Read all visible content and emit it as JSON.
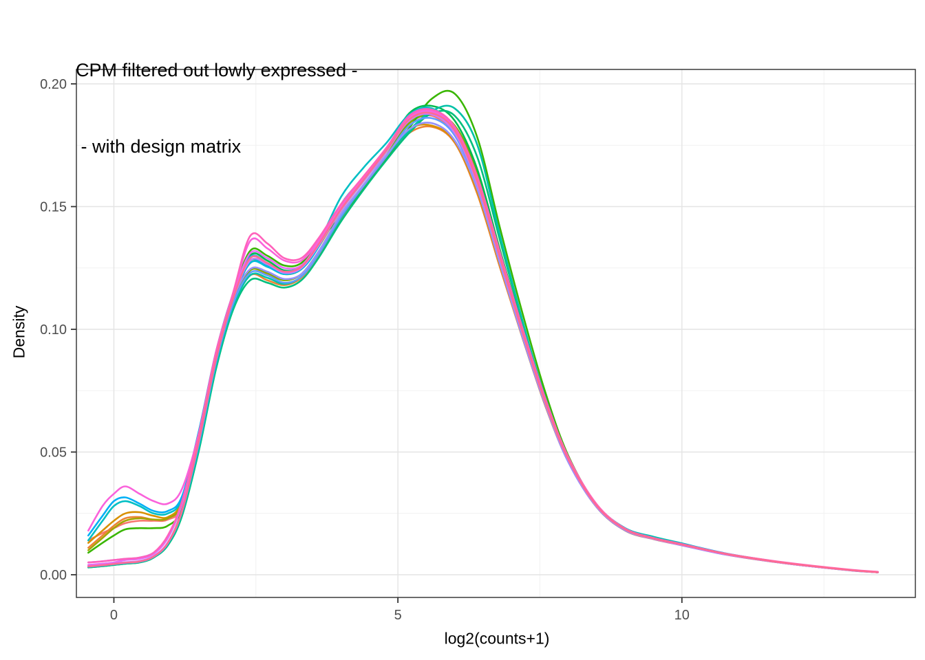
{
  "title": {
    "line1": "CPM filtered out lowly expressed -",
    "line2": " - with design matrix"
  },
  "colors": {
    "background": "#ffffff",
    "panel_border": "#3a3a3a",
    "grid_major": "#e4e4e4",
    "grid_minor": "#f1f1f1",
    "tick_mark": "#333333",
    "tick_label": "#4d4d4d",
    "text": "#000000"
  },
  "chart_data": {
    "type": "line",
    "title": "CPM filtered out lowly expressed - - with design matrix",
    "xlabel": "log2(counts+1)",
    "ylabel": "Density",
    "legend": "none",
    "grid": "major+minor",
    "x_domain": [
      -0.66,
      14.11
    ],
    "y_domain": [
      0,
      0.206
    ],
    "x_ticks": [
      0,
      5,
      10
    ],
    "x_tick_labels": [
      "0",
      "5",
      "10"
    ],
    "x_minor": [
      2.5,
      7.5,
      12.5
    ],
    "y_ticks": [
      0,
      0.05,
      0.1,
      0.15,
      0.2
    ],
    "y_tick_labels": [
      "0.00",
      "0.05",
      "0.10",
      "0.15",
      "0.20"
    ],
    "y_minor": [
      0.025,
      0.075,
      0.125,
      0.175
    ],
    "line_width": 2.6,
    "x": [
      -0.45,
      -0.2,
      0,
      0.2,
      0.45,
      0.7,
      0.95,
      1.2,
      1.5,
      1.8,
      2.1,
      2.4,
      2.7,
      3.0,
      3.3,
      3.6,
      4.0,
      4.4,
      4.8,
      5.2,
      5.6,
      6.0,
      6.4,
      6.8,
      7.2,
      7.6,
      8.0,
      8.5,
      9.0,
      9.5,
      10.0,
      10.75,
      11.5,
      12.25,
      13.0,
      13.45
    ],
    "series": [
      {
        "name": "curve-01",
        "color": "#F8766D",
        "y": [
          0.014,
          0.017,
          0.019,
          0.021,
          0.022,
          0.022,
          0.0225,
          0.028,
          0.056,
          0.089,
          0.113,
          0.129,
          0.127,
          0.1235,
          0.125,
          0.134,
          0.149,
          0.161,
          0.173,
          0.184,
          0.187,
          0.179,
          0.159,
          0.129,
          0.098,
          0.07,
          0.047,
          0.028,
          0.0185,
          0.0148,
          0.0122,
          0.0085,
          0.0058,
          0.0036,
          0.0018,
          0.001
        ]
      },
      {
        "name": "curve-02",
        "color": "#EB8335",
        "y": [
          0.011,
          0.016,
          0.02,
          0.023,
          0.0235,
          0.0225,
          0.023,
          0.029,
          0.054,
          0.086,
          0.11,
          0.122,
          0.12,
          0.118,
          0.121,
          0.13,
          0.145,
          0.158,
          0.17,
          0.18,
          0.1825,
          0.176,
          0.155,
          0.125,
          0.096,
          0.0685,
          0.046,
          0.0275,
          0.018,
          0.0145,
          0.012,
          0.0083,
          0.0056,
          0.0035,
          0.0017,
          0.001
        ]
      },
      {
        "name": "curve-03",
        "color": "#D89000",
        "y": [
          0.013,
          0.018,
          0.022,
          0.025,
          0.0255,
          0.024,
          0.0235,
          0.03,
          0.056,
          0.088,
          0.111,
          0.124,
          0.1225,
          0.12,
          0.1225,
          0.1315,
          0.1465,
          0.1585,
          0.1705,
          0.1815,
          0.183,
          0.1765,
          0.156,
          0.126,
          0.097,
          0.069,
          0.0465,
          0.0278,
          0.0182,
          0.0146,
          0.0121,
          0.0084,
          0.0057,
          0.0035,
          0.0018,
          0.001
        ]
      },
      {
        "name": "curve-04",
        "color": "#C09B00",
        "y": [
          0.0035,
          0.004,
          0.0045,
          0.005,
          0.0055,
          0.0075,
          0.013,
          0.026,
          0.054,
          0.087,
          0.112,
          0.127,
          0.126,
          0.1225,
          0.1245,
          0.1335,
          0.1485,
          0.1605,
          0.1725,
          0.185,
          0.188,
          0.181,
          0.16,
          0.129,
          0.098,
          0.07,
          0.047,
          0.028,
          0.0185,
          0.0148,
          0.0122,
          0.0085,
          0.0058,
          0.0036,
          0.0018,
          0.001
        ]
      },
      {
        "name": "curve-05",
        "color": "#A3A500",
        "y": [
          0.01,
          0.015,
          0.019,
          0.022,
          0.023,
          0.0225,
          0.023,
          0.029,
          0.056,
          0.089,
          0.113,
          0.128,
          0.1265,
          0.123,
          0.125,
          0.134,
          0.1485,
          0.1605,
          0.1725,
          0.186,
          0.189,
          0.182,
          0.161,
          0.13,
          0.099,
          0.0705,
          0.0472,
          0.0282,
          0.0186,
          0.0149,
          0.0122,
          0.0085,
          0.0058,
          0.0036,
          0.0018,
          0.001
        ]
      },
      {
        "name": "curve-06",
        "color": "#7CAE00",
        "y": [
          0.0035,
          0.004,
          0.0045,
          0.005,
          0.0055,
          0.0075,
          0.013,
          0.0265,
          0.0545,
          0.0875,
          0.1115,
          0.124,
          0.123,
          0.12,
          0.1225,
          0.1315,
          0.147,
          0.159,
          0.171,
          0.184,
          0.1875,
          0.183,
          0.164,
          0.132,
          0.1,
          0.071,
          0.0475,
          0.0283,
          0.0186,
          0.0149,
          0.0122,
          0.0085,
          0.0058,
          0.0036,
          0.0018,
          0.001
        ]
      },
      {
        "name": "curve-07",
        "color": "#39B600",
        "y": [
          0.009,
          0.013,
          0.016,
          0.0185,
          0.019,
          0.019,
          0.02,
          0.027,
          0.055,
          0.089,
          0.114,
          0.132,
          0.13,
          0.126,
          0.127,
          0.136,
          0.146,
          0.158,
          0.17,
          0.182,
          0.194,
          0.196,
          0.178,
          0.141,
          0.106,
          0.074,
          0.0485,
          0.0285,
          0.0187,
          0.0149,
          0.0122,
          0.0085,
          0.0058,
          0.0036,
          0.0018,
          0.001
        ]
      },
      {
        "name": "curve-08",
        "color": "#00BB4E",
        "y": [
          0.003,
          0.0035,
          0.004,
          0.0045,
          0.005,
          0.007,
          0.0125,
          0.0255,
          0.0535,
          0.0865,
          0.111,
          0.13,
          0.128,
          0.124,
          0.1255,
          0.1345,
          0.149,
          0.161,
          0.173,
          0.188,
          0.191,
          0.185,
          0.165,
          0.132,
          0.1,
          0.0712,
          0.0475,
          0.0283,
          0.0186,
          0.0149,
          0.0122,
          0.0085,
          0.0058,
          0.0036,
          0.0018,
          0.001
        ]
      },
      {
        "name": "curve-09",
        "color": "#00BF7D",
        "y": [
          0.003,
          0.0035,
          0.004,
          0.0045,
          0.005,
          0.007,
          0.012,
          0.024,
          0.051,
          0.084,
          0.108,
          0.12,
          0.119,
          0.117,
          0.12,
          0.129,
          0.144,
          0.157,
          0.169,
          0.18,
          0.188,
          0.187,
          0.17,
          0.136,
          0.102,
          0.072,
          0.0478,
          0.0284,
          0.0187,
          0.015,
          0.0123,
          0.0085,
          0.0058,
          0.0036,
          0.0018,
          0.001
        ]
      },
      {
        "name": "curve-10",
        "color": "#00C1A7",
        "y": [
          0.0032,
          0.0037,
          0.0042,
          0.0047,
          0.0052,
          0.0072,
          0.0125,
          0.025,
          0.052,
          0.085,
          0.109,
          0.122,
          0.121,
          0.1185,
          0.1215,
          0.1305,
          0.1455,
          0.1585,
          0.1705,
          0.181,
          0.189,
          0.19,
          0.175,
          0.138,
          0.103,
          0.0715,
          0.0473,
          0.0285,
          0.019,
          0.0155,
          0.0128,
          0.0087,
          0.0059,
          0.0036,
          0.0018,
          0.001
        ]
      },
      {
        "name": "curve-11",
        "color": "#00BFC4",
        "y": [
          0.014,
          0.022,
          0.028,
          0.03,
          0.028,
          0.025,
          0.025,
          0.031,
          0.058,
          0.09,
          0.114,
          0.128,
          0.126,
          0.1235,
          0.126,
          0.135,
          0.154,
          0.166,
          0.176,
          0.1875,
          0.19,
          0.181,
          0.159,
          0.128,
          0.098,
          0.07,
          0.047,
          0.0282,
          0.019,
          0.0152,
          0.0125,
          0.0086,
          0.0058,
          0.0036,
          0.0018,
          0.001
        ]
      },
      {
        "name": "curve-12",
        "color": "#00BADE",
        "y": [
          0.0035,
          0.004,
          0.0045,
          0.005,
          0.0055,
          0.0075,
          0.013,
          0.026,
          0.0545,
          0.0875,
          0.112,
          0.127,
          0.1255,
          0.1225,
          0.1245,
          0.1335,
          0.151,
          0.162,
          0.173,
          0.186,
          0.1885,
          0.18,
          0.159,
          0.128,
          0.0975,
          0.0695,
          0.0465,
          0.0278,
          0.0183,
          0.0147,
          0.0121,
          0.0084,
          0.0057,
          0.0035,
          0.0018,
          0.001
        ]
      },
      {
        "name": "curve-13",
        "color": "#00B0F6",
        "y": [
          0.016,
          0.024,
          0.03,
          0.0315,
          0.029,
          0.026,
          0.026,
          0.032,
          0.059,
          0.091,
          0.1145,
          0.1295,
          0.127,
          0.1235,
          0.1255,
          0.1345,
          0.1495,
          0.1615,
          0.1735,
          0.187,
          0.1895,
          0.181,
          0.16,
          0.129,
          0.098,
          0.07,
          0.047,
          0.028,
          0.0185,
          0.0149,
          0.0126,
          0.0088,
          0.0059,
          0.0036,
          0.0018,
          0.001
        ]
      },
      {
        "name": "curve-14",
        "color": "#619CFF",
        "y": [
          0.0033,
          0.0038,
          0.0043,
          0.0048,
          0.0053,
          0.0073,
          0.0128,
          0.0258,
          0.0538,
          0.0868,
          0.1105,
          0.123,
          0.122,
          0.119,
          0.1215,
          0.1305,
          0.146,
          0.1585,
          0.1705,
          0.183,
          0.186,
          0.179,
          0.158,
          0.127,
          0.0965,
          0.069,
          0.046,
          0.0276,
          0.0181,
          0.0146,
          0.012,
          0.0083,
          0.0057,
          0.0035,
          0.0017,
          0.001
        ]
      },
      {
        "name": "curve-15",
        "color": "#9590FF",
        "y": [
          0.005,
          0.0055,
          0.006,
          0.0065,
          0.007,
          0.009,
          0.015,
          0.029,
          0.056,
          0.0885,
          0.1125,
          0.1245,
          0.1235,
          0.1205,
          0.1225,
          0.1315,
          0.147,
          0.159,
          0.171,
          0.1815,
          0.184,
          0.177,
          0.157,
          0.1265,
          0.0965,
          0.069,
          0.046,
          0.0277,
          0.0182,
          0.0146,
          0.0121,
          0.0084,
          0.0057,
          0.0035,
          0.0018,
          0.001
        ]
      },
      {
        "name": "curve-16",
        "color": "#C77CFF",
        "y": [
          0.0036,
          0.0041,
          0.0046,
          0.0051,
          0.0056,
          0.0076,
          0.0132,
          0.0262,
          0.0552,
          0.0882,
          0.1125,
          0.128,
          0.1265,
          0.123,
          0.125,
          0.134,
          0.1485,
          0.1605,
          0.1725,
          0.185,
          0.1875,
          0.18,
          0.159,
          0.1285,
          0.098,
          0.0698,
          0.0468,
          0.0279,
          0.0184,
          0.0147,
          0.0121,
          0.0084,
          0.0057,
          0.0035,
          0.0018,
          0.001
        ]
      },
      {
        "name": "curve-17",
        "color": "#E76BF3",
        "y": [
          0.004,
          0.0045,
          0.005,
          0.006,
          0.0065,
          0.0085,
          0.015,
          0.029,
          0.057,
          0.0895,
          0.1135,
          0.131,
          0.129,
          0.125,
          0.126,
          0.135,
          0.1495,
          0.1615,
          0.1735,
          0.186,
          0.1885,
          0.181,
          0.16,
          0.129,
          0.0985,
          0.0702,
          0.047,
          0.028,
          0.0185,
          0.0148,
          0.0122,
          0.0085,
          0.0058,
          0.0036,
          0.0018,
          0.001
        ]
      },
      {
        "name": "curve-18",
        "color": "#FA62DB",
        "y": [
          0.018,
          0.028,
          0.033,
          0.036,
          0.033,
          0.03,
          0.029,
          0.035,
          0.058,
          0.09,
          0.114,
          0.136,
          0.133,
          0.128,
          0.128,
          0.136,
          0.15,
          0.162,
          0.174,
          0.1865,
          0.189,
          0.182,
          0.161,
          0.13,
          0.099,
          0.0705,
          0.0472,
          0.0282,
          0.0186,
          0.0149,
          0.0122,
          0.0085,
          0.0058,
          0.0036,
          0.0018,
          0.0011
        ]
      },
      {
        "name": "curve-19",
        "color": "#FF61BB",
        "y": [
          0.005,
          0.0055,
          0.006,
          0.0065,
          0.007,
          0.009,
          0.016,
          0.03,
          0.058,
          0.091,
          0.115,
          0.138,
          0.135,
          0.129,
          0.129,
          0.137,
          0.151,
          0.1625,
          0.174,
          0.187,
          0.1895,
          0.1825,
          0.162,
          0.131,
          0.1,
          0.0715,
          0.048,
          0.0287,
          0.0188,
          0.015,
          0.0125,
          0.0087,
          0.006,
          0.0038,
          0.002,
          0.0012
        ]
      },
      {
        "name": "curve-20",
        "color": "#FF6C91",
        "y": [
          0.0034,
          0.0039,
          0.0044,
          0.0049,
          0.0054,
          0.0074,
          0.013,
          0.026,
          0.055,
          0.088,
          0.1125,
          0.129,
          0.127,
          0.1235,
          0.1255,
          0.1345,
          0.149,
          0.161,
          0.173,
          0.1855,
          0.188,
          0.181,
          0.16,
          0.129,
          0.0983,
          0.07,
          0.047,
          0.0281,
          0.0185,
          0.0148,
          0.0123,
          0.0086,
          0.0058,
          0.0036,
          0.0018,
          0.001
        ]
      }
    ]
  }
}
